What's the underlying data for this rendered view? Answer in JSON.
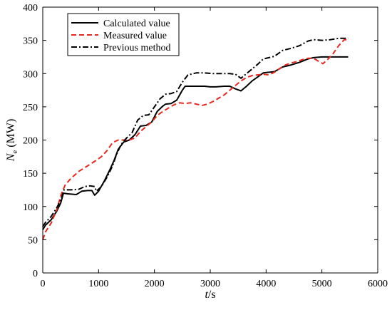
{
  "chart_data": {
    "type": "line",
    "xlabel": "t/s",
    "xlabel_italic": "t",
    "xlabel_rest": "/s",
    "ylabel_main": "N",
    "ylabel_sub": "e",
    "ylabel_unit": " (MW)",
    "xlim": [
      0,
      6000
    ],
    "ylim": [
      0,
      400
    ],
    "xticks": [
      0,
      1000,
      2000,
      3000,
      4000,
      5000,
      6000
    ],
    "yticks": [
      0,
      50,
      100,
      150,
      200,
      250,
      300,
      350,
      400
    ],
    "grid": false,
    "legend_position": "top-left",
    "series": [
      {
        "name": "Calculated value",
        "color": "#000000",
        "dash": "solid",
        "points": [
          [
            0,
            65
          ],
          [
            50,
            72
          ],
          [
            150,
            80
          ],
          [
            250,
            93
          ],
          [
            320,
            105
          ],
          [
            370,
            120
          ],
          [
            450,
            119
          ],
          [
            600,
            118
          ],
          [
            700,
            123
          ],
          [
            800,
            124
          ],
          [
            880,
            124
          ],
          [
            930,
            117
          ],
          [
            1000,
            123
          ],
          [
            1100,
            138
          ],
          [
            1200,
            155
          ],
          [
            1280,
            170
          ],
          [
            1350,
            186
          ],
          [
            1450,
            197
          ],
          [
            1550,
            200
          ],
          [
            1650,
            208
          ],
          [
            1750,
            221
          ],
          [
            1850,
            222
          ],
          [
            1950,
            227
          ],
          [
            2050,
            243
          ],
          [
            2150,
            251
          ],
          [
            2200,
            254
          ],
          [
            2300,
            255
          ],
          [
            2400,
            260
          ],
          [
            2500,
            275
          ],
          [
            2550,
            281
          ],
          [
            2700,
            281
          ],
          [
            2900,
            281
          ],
          [
            3000,
            280
          ],
          [
            3100,
            280
          ],
          [
            3250,
            281
          ],
          [
            3350,
            281
          ],
          [
            3450,
            277
          ],
          [
            3550,
            274
          ],
          [
            3650,
            281
          ],
          [
            3750,
            289
          ],
          [
            3850,
            295
          ],
          [
            3950,
            301
          ],
          [
            4050,
            302
          ],
          [
            4150,
            303
          ],
          [
            4300,
            310
          ],
          [
            4450,
            313
          ],
          [
            4600,
            317
          ],
          [
            4750,
            322
          ],
          [
            4850,
            324
          ],
          [
            5000,
            325
          ],
          [
            5200,
            325
          ],
          [
            5470,
            325
          ]
        ]
      },
      {
        "name": "Measured value",
        "color": "#e8281e",
        "dash": "dashed",
        "points": [
          [
            0,
            50
          ],
          [
            50,
            62
          ],
          [
            150,
            75
          ],
          [
            250,
            95
          ],
          [
            330,
            118
          ],
          [
            400,
            132
          ],
          [
            500,
            142
          ],
          [
            650,
            153
          ],
          [
            800,
            161
          ],
          [
            950,
            169
          ],
          [
            1050,
            175
          ],
          [
            1150,
            184
          ],
          [
            1250,
            196
          ],
          [
            1350,
            200
          ],
          [
            1450,
            200
          ],
          [
            1550,
            200
          ],
          [
            1650,
            203
          ],
          [
            1750,
            213
          ],
          [
            1850,
            220
          ],
          [
            1950,
            227
          ],
          [
            2050,
            237
          ],
          [
            2150,
            243
          ],
          [
            2250,
            248
          ],
          [
            2350,
            253
          ],
          [
            2450,
            256
          ],
          [
            2550,
            255
          ],
          [
            2650,
            256
          ],
          [
            2750,
            254
          ],
          [
            2850,
            252
          ],
          [
            2950,
            254
          ],
          [
            3050,
            258
          ],
          [
            3150,
            263
          ],
          [
            3250,
            268
          ],
          [
            3350,
            275
          ],
          [
            3450,
            282
          ],
          [
            3550,
            289
          ],
          [
            3650,
            294
          ],
          [
            3750,
            297
          ],
          [
            3850,
            298
          ],
          [
            3950,
            299
          ],
          [
            4050,
            298
          ],
          [
            4150,
            302
          ],
          [
            4250,
            308
          ],
          [
            4350,
            313
          ],
          [
            4450,
            316
          ],
          [
            4550,
            318
          ],
          [
            4650,
            321
          ],
          [
            4750,
            323
          ],
          [
            4850,
            323
          ],
          [
            4950,
            318
          ],
          [
            5020,
            315
          ],
          [
            5100,
            321
          ],
          [
            5200,
            330
          ],
          [
            5300,
            342
          ],
          [
            5400,
            351
          ],
          [
            5470,
            351
          ]
        ]
      },
      {
        "name": "Previous method",
        "color": "#000000",
        "dash": "dashdot",
        "points": [
          [
            0,
            70
          ],
          [
            50,
            76
          ],
          [
            150,
            85
          ],
          [
            250,
            98
          ],
          [
            330,
            111
          ],
          [
            380,
            125
          ],
          [
            500,
            125
          ],
          [
            650,
            126
          ],
          [
            750,
            130
          ],
          [
            850,
            131
          ],
          [
            930,
            130
          ],
          [
            960,
            123
          ],
          [
            1050,
            130
          ],
          [
            1150,
            144
          ],
          [
            1250,
            161
          ],
          [
            1320,
            178
          ],
          [
            1400,
            193
          ],
          [
            1500,
            203
          ],
          [
            1600,
            211
          ],
          [
            1700,
            230
          ],
          [
            1800,
            237
          ],
          [
            1900,
            238
          ],
          [
            2000,
            250
          ],
          [
            2100,
            262
          ],
          [
            2200,
            269
          ],
          [
            2300,
            270
          ],
          [
            2400,
            273
          ],
          [
            2500,
            287
          ],
          [
            2600,
            298
          ],
          [
            2750,
            301
          ],
          [
            2900,
            301
          ],
          [
            3050,
            300
          ],
          [
            3200,
            300
          ],
          [
            3350,
            300
          ],
          [
            3450,
            299
          ],
          [
            3550,
            293
          ],
          [
            3650,
            300
          ],
          [
            3750,
            307
          ],
          [
            3850,
            314
          ],
          [
            3950,
            322
          ],
          [
            4050,
            324
          ],
          [
            4150,
            326
          ],
          [
            4300,
            335
          ],
          [
            4450,
            338
          ],
          [
            4600,
            342
          ],
          [
            4750,
            349
          ],
          [
            4850,
            351
          ],
          [
            5000,
            350
          ],
          [
            5150,
            351
          ],
          [
            5300,
            353
          ],
          [
            5470,
            353
          ]
        ]
      }
    ]
  }
}
